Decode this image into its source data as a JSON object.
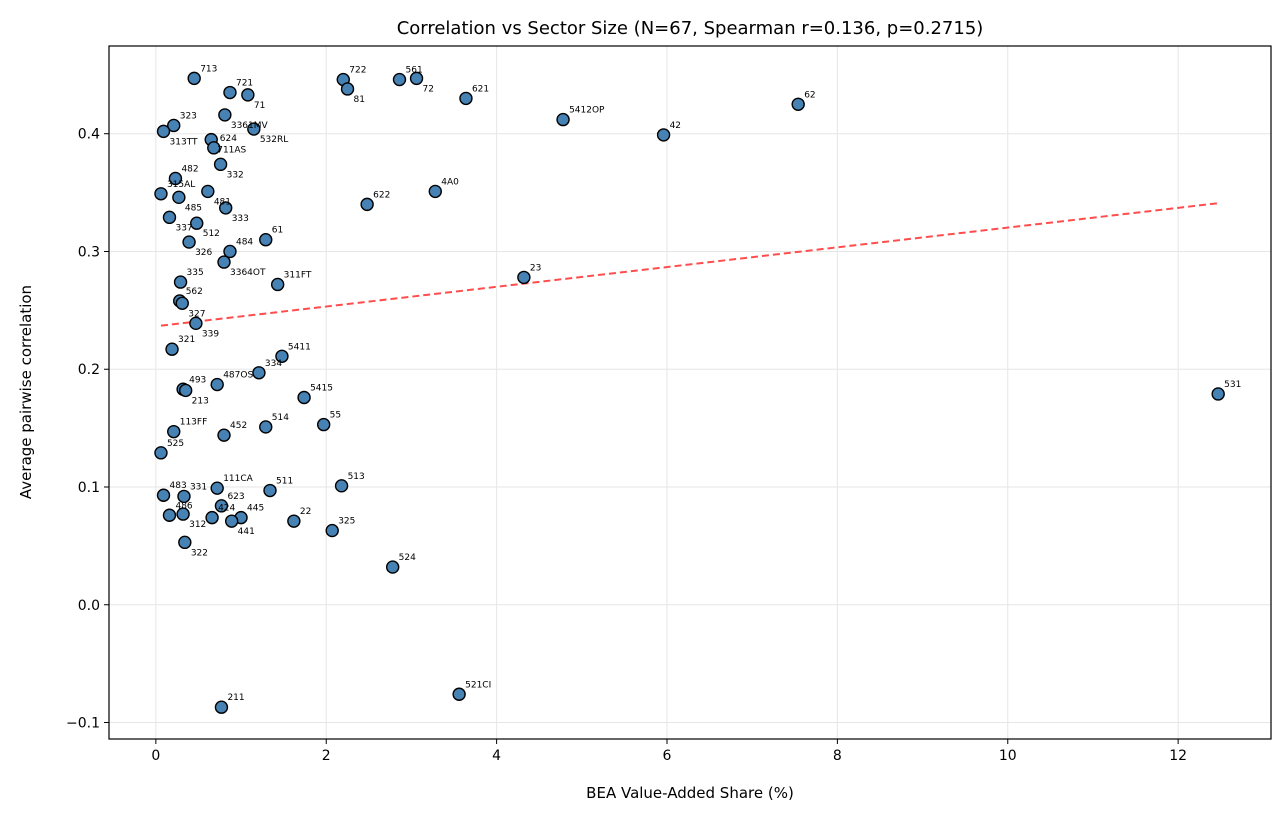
{
  "chart_data": {
    "type": "scatter",
    "title": "Correlation vs Sector Size (N=67, Spearman r=0.136, p=0.2715)",
    "xlabel": "BEA Value-Added Share (%)",
    "ylabel": "Average pairwise correlation",
    "xlim": [
      -0.55,
      13.09
    ],
    "ylim": [
      -0.114,
      0.4745
    ],
    "xticks": [
      0,
      2,
      4,
      6,
      8,
      10,
      12
    ],
    "xtick_labels": [
      "0",
      "2",
      "4",
      "6",
      "8",
      "10",
      "12"
    ],
    "yticks": [
      -0.1,
      0.0,
      0.1,
      0.2,
      0.3,
      0.4
    ],
    "ytick_labels": [
      "−0.1",
      "0.0",
      "0.1",
      "0.2",
      "0.3",
      "0.4"
    ],
    "grid": true,
    "marker_color": "#4682b4",
    "trend_color": "#ff4d4d",
    "trend_line": {
      "x": [
        0.06,
        12.47
      ],
      "y": [
        0.237,
        0.341
      ]
    },
    "points": [
      {
        "label": "713",
        "x": 0.45,
        "y": 0.447
      },
      {
        "label": "721",
        "x": 0.87,
        "y": 0.435
      },
      {
        "label": "71",
        "x": 1.08,
        "y": 0.433
      },
      {
        "label": "3361MV",
        "x": 0.81,
        "y": 0.416
      },
      {
        "label": "532RL",
        "x": 1.15,
        "y": 0.404
      },
      {
        "label": "323",
        "x": 0.21,
        "y": 0.407
      },
      {
        "label": "313TT",
        "x": 0.09,
        "y": 0.402
      },
      {
        "label": "711AS",
        "x": 0.65,
        "y": 0.395
      },
      {
        "label": "624",
        "x": 0.68,
        "y": 0.388
      },
      {
        "label": "332",
        "x": 0.76,
        "y": 0.374
      },
      {
        "label": "482",
        "x": 0.23,
        "y": 0.362
      },
      {
        "label": "315AL",
        "x": 0.06,
        "y": 0.349
      },
      {
        "label": "485",
        "x": 0.27,
        "y": 0.346
      },
      {
        "label": "481",
        "x": 0.61,
        "y": 0.351
      },
      {
        "label": "333",
        "x": 0.82,
        "y": 0.337
      },
      {
        "label": "337",
        "x": 0.16,
        "y": 0.329
      },
      {
        "label": "512",
        "x": 0.48,
        "y": 0.324
      },
      {
        "label": "326",
        "x": 0.39,
        "y": 0.308
      },
      {
        "label": "61",
        "x": 1.29,
        "y": 0.31
      },
      {
        "label": "484",
        "x": 0.87,
        "y": 0.3
      },
      {
        "label": "3364OT",
        "x": 0.8,
        "y": 0.291
      },
      {
        "label": "335",
        "x": 0.29,
        "y": 0.274
      },
      {
        "label": "562",
        "x": 0.28,
        "y": 0.258
      },
      {
        "label": "327",
        "x": 0.31,
        "y": 0.256
      },
      {
        "label": "311FT",
        "x": 1.43,
        "y": 0.272
      },
      {
        "label": "339",
        "x": 0.47,
        "y": 0.239
      },
      {
        "label": "321",
        "x": 0.19,
        "y": 0.217
      },
      {
        "label": "5411",
        "x": 1.48,
        "y": 0.211
      },
      {
        "label": "334",
        "x": 1.21,
        "y": 0.197
      },
      {
        "label": "487OS",
        "x": 0.72,
        "y": 0.187
      },
      {
        "label": "493",
        "x": 0.32,
        "y": 0.183
      },
      {
        "label": "213",
        "x": 0.35,
        "y": 0.182
      },
      {
        "label": "5415",
        "x": 1.74,
        "y": 0.176
      },
      {
        "label": "113FF",
        "x": 0.21,
        "y": 0.147
      },
      {
        "label": "452",
        "x": 0.8,
        "y": 0.144
      },
      {
        "label": "514",
        "x": 1.29,
        "y": 0.151
      },
      {
        "label": "55",
        "x": 1.97,
        "y": 0.153
      },
      {
        "label": "525",
        "x": 0.06,
        "y": 0.129
      },
      {
        "label": "483",
        "x": 0.09,
        "y": 0.093
      },
      {
        "label": "331",
        "x": 0.33,
        "y": 0.092
      },
      {
        "label": "111CA",
        "x": 0.72,
        "y": 0.099
      },
      {
        "label": "511",
        "x": 1.34,
        "y": 0.097
      },
      {
        "label": "513",
        "x": 2.18,
        "y": 0.101
      },
      {
        "label": "486",
        "x": 0.16,
        "y": 0.076
      },
      {
        "label": "312",
        "x": 0.32,
        "y": 0.077
      },
      {
        "label": "623",
        "x": 0.77,
        "y": 0.084
      },
      {
        "label": "424",
        "x": 0.66,
        "y": 0.074
      },
      {
        "label": "445",
        "x": 1.0,
        "y": 0.074
      },
      {
        "label": "441",
        "x": 0.89,
        "y": 0.071
      },
      {
        "label": "22",
        "x": 1.62,
        "y": 0.071
      },
      {
        "label": "325",
        "x": 2.07,
        "y": 0.063
      },
      {
        "label": "322",
        "x": 0.34,
        "y": 0.053
      },
      {
        "label": "524",
        "x": 2.78,
        "y": 0.032
      },
      {
        "label": "521CI",
        "x": 3.56,
        "y": -0.076
      },
      {
        "label": "211",
        "x": 0.77,
        "y": -0.087
      },
      {
        "label": "722",
        "x": 2.2,
        "y": 0.446
      },
      {
        "label": "81",
        "x": 2.25,
        "y": 0.438
      },
      {
        "label": "561",
        "x": 2.86,
        "y": 0.446
      },
      {
        "label": "72",
        "x": 3.06,
        "y": 0.447
      },
      {
        "label": "621",
        "x": 3.64,
        "y": 0.43
      },
      {
        "label": "5412OP",
        "x": 4.78,
        "y": 0.412
      },
      {
        "label": "62",
        "x": 7.54,
        "y": 0.425
      },
      {
        "label": "42",
        "x": 5.96,
        "y": 0.399
      },
      {
        "label": "622",
        "x": 2.48,
        "y": 0.34
      },
      {
        "label": "4A0",
        "x": 3.28,
        "y": 0.351
      },
      {
        "label": "23",
        "x": 4.32,
        "y": 0.278
      },
      {
        "label": "531",
        "x": 12.47,
        "y": 0.179
      }
    ]
  }
}
